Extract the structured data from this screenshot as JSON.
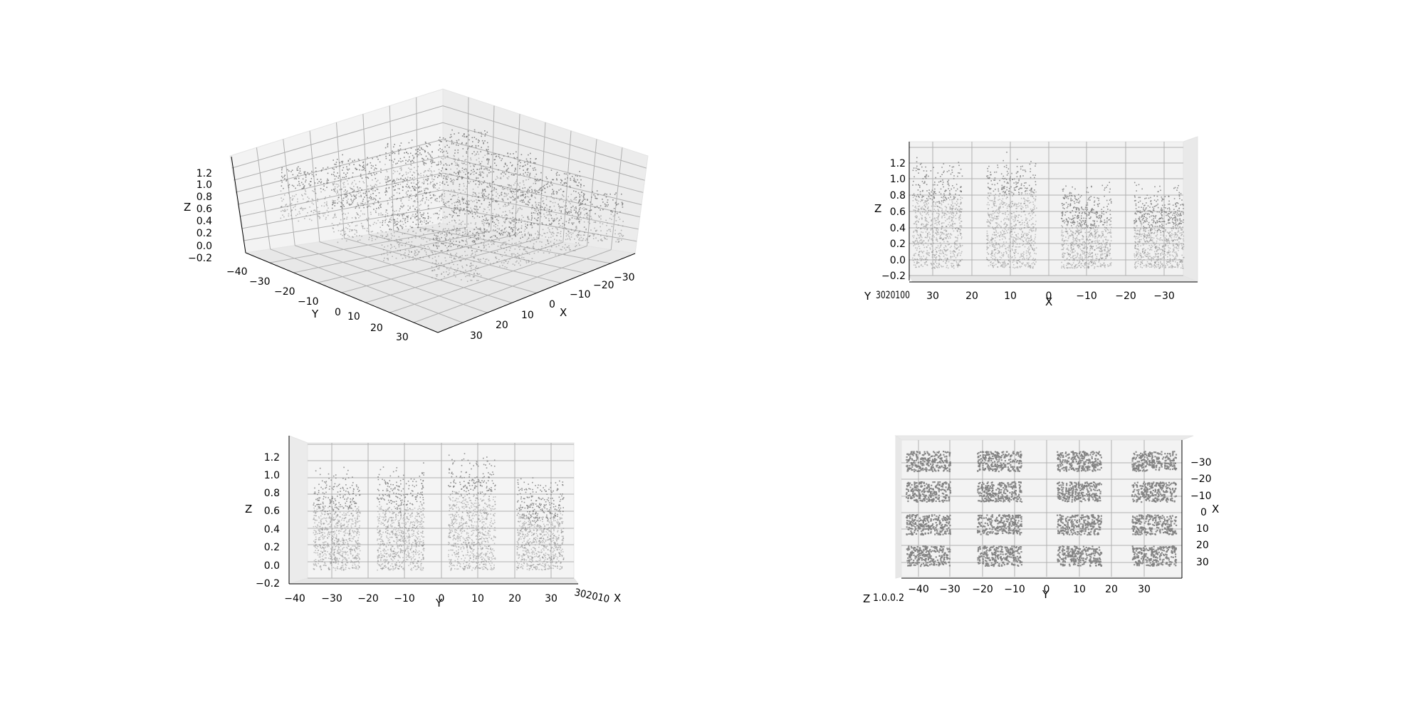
{
  "colors": {
    "points": "#808080",
    "pane_light": "#f7f7f7",
    "pane_mid": "#efefef",
    "pane_dark": "#e7e7e7",
    "grid": "#b0b0b0",
    "text": "#000000"
  },
  "chart_data": [
    {
      "type": "scatter",
      "view": "perspective",
      "xlabel": "X",
      "ylabel": "Y",
      "zlabel": "Z",
      "x_ticks": [
        "30",
        "20",
        "10",
        "0",
        "−10",
        "−20",
        "−30"
      ],
      "y_ticks": [
        "−40",
        "−30",
        "−20",
        "−10",
        "0",
        "10",
        "20",
        "30"
      ],
      "z_ticks": [
        "−0.2",
        "0.0",
        "0.2",
        "0.4",
        "0.6",
        "0.8",
        "1.0",
        "1.2"
      ],
      "xlim": [
        -40,
        40
      ],
      "ylim": [
        -40,
        40
      ],
      "zlim": [
        -0.2,
        1.3
      ],
      "grid": true
    },
    {
      "type": "scatter",
      "view": "side-xz",
      "xlabel": "X",
      "ylabel": "Y",
      "zlabel": "Z",
      "x_ticks": [
        "30",
        "20",
        "10",
        "0",
        "−10",
        "−20",
        "−30"
      ],
      "y_ticks_overlap": "3020100",
      "z_ticks": [
        "−0.2",
        "0.0",
        "0.2",
        "0.4",
        "0.6",
        "0.8",
        "1.0",
        "1.2"
      ],
      "xlim": [
        35,
        -35
      ],
      "zlim": [
        -0.2,
        1.3
      ],
      "grid": true
    },
    {
      "type": "scatter",
      "view": "side-yz",
      "xlabel": "X",
      "ylabel": "Y",
      "zlabel": "Z",
      "y_ticks": [
        "−40",
        "−30",
        "−20",
        "−10",
        "0",
        "10",
        "20",
        "30"
      ],
      "x_ticks_overlap": "302010",
      "z_ticks": [
        "−0.2",
        "0.0",
        "0.2",
        "0.4",
        "0.6",
        "0.8",
        "1.0",
        "1.2"
      ],
      "ylim": [
        -42,
        42
      ],
      "zlim": [
        -0.2,
        1.3
      ],
      "grid": true
    },
    {
      "type": "scatter",
      "view": "top-xy",
      "xlabel": "X",
      "ylabel": "Y",
      "zlabel": "Z",
      "y_ticks": [
        "−40",
        "−30",
        "−20",
        "−10",
        "0",
        "10",
        "20",
        "30"
      ],
      "x_ticks": [
        "−30",
        "−20",
        "−10",
        "0",
        "10",
        "20",
        "30"
      ],
      "z_ticks_overlap": "1.0.0.2",
      "xlim": [
        -40,
        40
      ],
      "ylim": [
        -42,
        42
      ],
      "grid": true,
      "blocks": {
        "x_centers": [
          -30,
          -10,
          10,
          30
        ],
        "y_centers": [
          -30,
          -10,
          10,
          30
        ],
        "size": 12
      }
    }
  ]
}
